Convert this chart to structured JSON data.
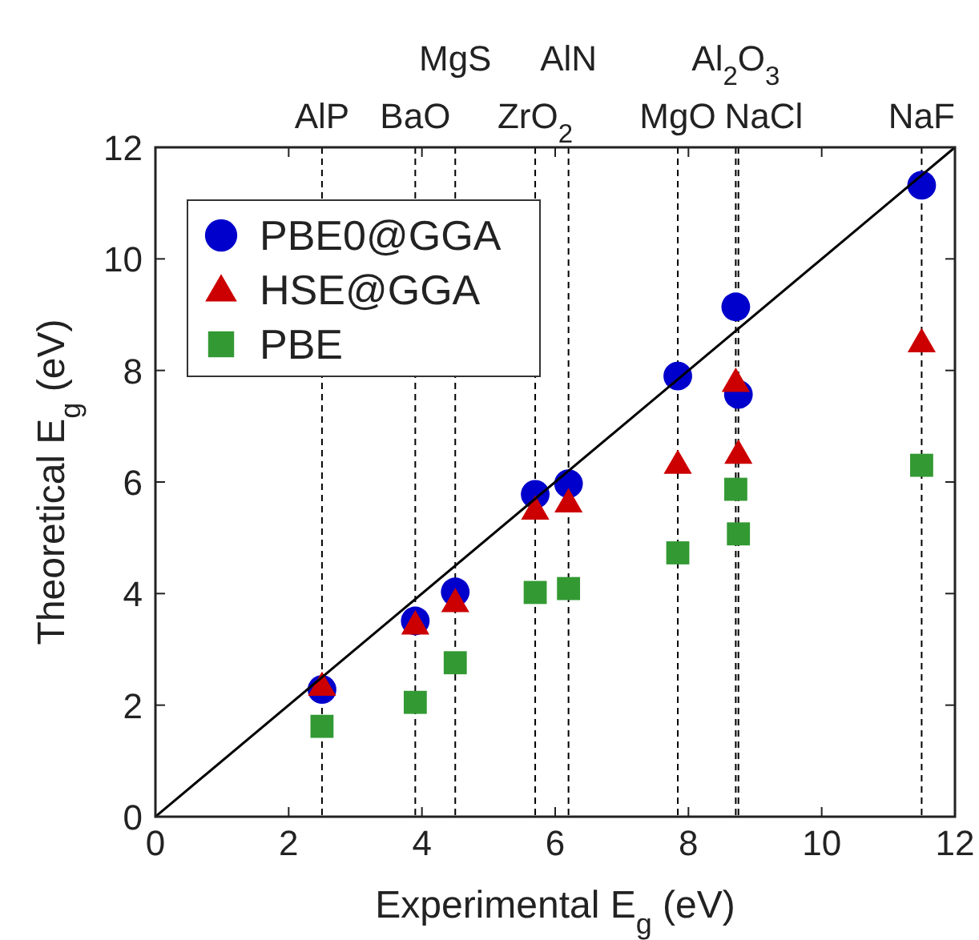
{
  "chart_data": {
    "type": "scatter",
    "xlabel": "Experimental E$_{g}$ (eV)",
    "ylabel": "Theoretical E$_{g}$ (eV)",
    "xlim": [
      0,
      12
    ],
    "ylim": [
      0,
      12
    ],
    "xticks": [
      0,
      2,
      4,
      6,
      8,
      10,
      12
    ],
    "yticks": [
      0,
      2,
      4,
      6,
      8,
      10,
      12
    ],
    "grid": false,
    "legend": "top left",
    "series": [
      {
        "name": "PBE0@GGA",
        "color": "#0000cc",
        "marker": "circle",
        "x": [
          2.5,
          3.9,
          4.5,
          5.7,
          6.2,
          7.84,
          8.71,
          8.75,
          11.5
        ],
        "values": [
          2.28,
          3.51,
          4.03,
          5.78,
          5.97,
          7.9,
          9.14,
          7.57,
          11.32
        ]
      },
      {
        "name": "HSE@GGA",
        "color": "#cc0000",
        "marker": "triangle",
        "x": [
          2.5,
          3.9,
          4.5,
          5.7,
          6.2,
          7.84,
          8.71,
          8.75,
          11.5
        ],
        "values": [
          2.35,
          3.45,
          3.85,
          5.51,
          5.64,
          6.33,
          7.8,
          6.51,
          8.51
        ]
      },
      {
        "name": "PBE",
        "color": "#339933",
        "marker": "square",
        "x": [
          2.5,
          3.9,
          4.5,
          5.7,
          6.2,
          7.84,
          8.71,
          8.75,
          11.5
        ],
        "values": [
          1.62,
          2.05,
          2.76,
          4.02,
          4.09,
          4.73,
          5.87,
          5.07,
          6.3
        ]
      },
      {
        "type": "line",
        "color": "#000000",
        "line_style": "solid",
        "x": [
          0,
          12
        ],
        "values": [
          0,
          12
        ]
      }
    ],
    "ref_lines": [
      {
        "axis": "x",
        "value": 2.5,
        "label": "AlP",
        "line_style": "dashed",
        "color": "#000000"
      },
      {
        "axis": "x",
        "value": 3.9,
        "label": "BaO",
        "line_style": "dashed",
        "color": "#000000"
      },
      {
        "axis": "x",
        "value": 4.5,
        "label": "MgS",
        "line_style": "dashed",
        "color": "#000000"
      },
      {
        "axis": "x",
        "value": 5.7,
        "label": "ZrO$_{2}$",
        "line_style": "dashed",
        "color": "#000000"
      },
      {
        "axis": "x",
        "value": 6.2,
        "label": "AlN",
        "line_style": "dashed",
        "color": "#000000"
      },
      {
        "axis": "x",
        "value": 7.84,
        "label": "MgO",
        "line_style": "dashed",
        "color": "#000000"
      },
      {
        "axis": "x",
        "value": 8.71,
        "label": "Al$_{2}$O$_{3}$",
        "line_style": "dashed",
        "color": "#000000"
      },
      {
        "axis": "x",
        "value": 8.75,
        "label": "NaCl",
        "line_style": "dashed",
        "color": "#000000"
      },
      {
        "axis": "x",
        "value": 11.5,
        "label": "NaF",
        "line_style": "dashed",
        "color": "#000000"
      }
    ]
  }
}
